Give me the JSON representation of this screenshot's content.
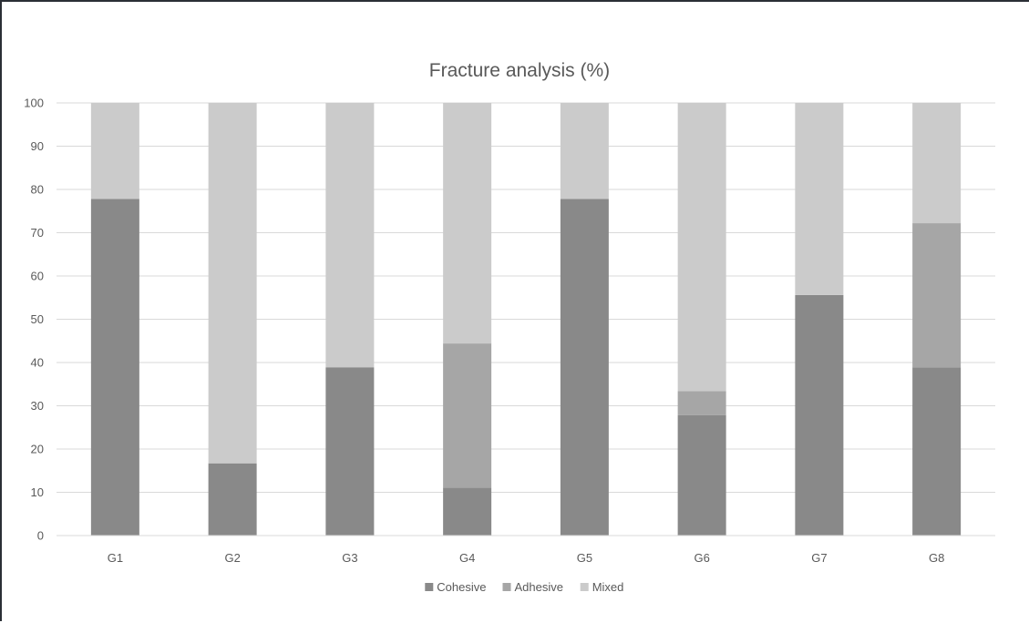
{
  "chart_data": {
    "type": "bar",
    "stacked": true,
    "title": "Fracture analysis (%)",
    "xlabel": "",
    "ylabel": "",
    "categories": [
      "G1",
      "G2",
      "G3",
      "G4",
      "G5",
      "G6",
      "G7",
      "G8"
    ],
    "series": [
      {
        "name": "Cohesive",
        "color": "#898989",
        "values": [
          77.8,
          16.7,
          38.9,
          11.1,
          77.8,
          27.8,
          55.6,
          38.9
        ]
      },
      {
        "name": "Adhesive",
        "color": "#a6a6a6",
        "values": [
          0,
          0,
          0,
          33.3,
          0,
          5.6,
          0,
          33.3
        ]
      },
      {
        "name": "Mixed",
        "color": "#cbcbcb",
        "values": [
          22.2,
          83.3,
          61.1,
          55.6,
          22.2,
          66.6,
          44.4,
          27.8
        ]
      }
    ],
    "ylim": [
      0,
      100
    ],
    "yticks": [
      0,
      10,
      20,
      30,
      40,
      50,
      60,
      70,
      80,
      90,
      100
    ],
    "grid": true,
    "legend_position": "bottom"
  }
}
